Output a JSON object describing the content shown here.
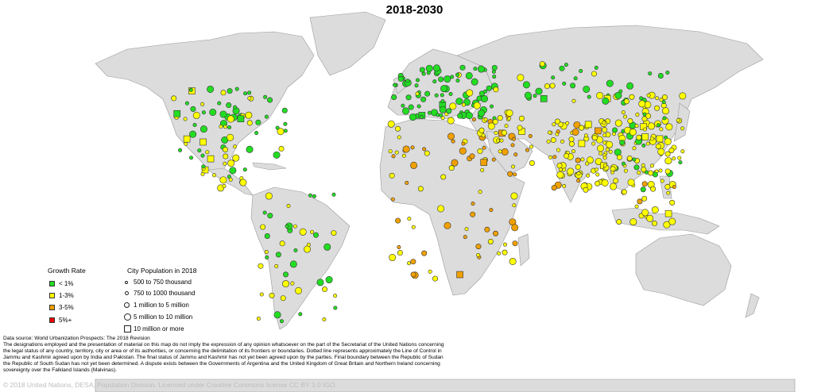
{
  "title": "2018-2030",
  "colors": {
    "land": "#dcdcdc",
    "border": "#9a9a9a",
    "water": "#ffffff"
  },
  "legend": {
    "growth_title": "Growth Rate",
    "growth": [
      {
        "label": "< 1%",
        "color": "#22dd22"
      },
      {
        "label": "1-3%",
        "color": "#ffff00"
      },
      {
        "label": "3-5%",
        "color": "#f0a000"
      },
      {
        "label": "5%+",
        "color": "#ee0000"
      }
    ],
    "pop_title": "City Population in 2018",
    "pop": [
      {
        "label": "500 to 750 thousand",
        "shape": "circle-xs"
      },
      {
        "label": "750 to 1000 thousand",
        "shape": "circle-s"
      },
      {
        "label": "1 million to 5 million",
        "shape": "circle-m"
      },
      {
        "label": "5 million to 10 million",
        "shape": "circle-l"
      },
      {
        "label": "10 million or more",
        "shape": "square"
      }
    ]
  },
  "footnote": {
    "source": "Data source: World Urbanization Prospects: The 2018 Revision",
    "disclaimer": "The designations employed and the presentation of material on this map do not imply the expression of any opinion whatsoever on the part of the Secretariat of the United Nations concerning the legal status of any country, territory, city or area or of its authorities, or concerning the delimitation of its frontiers or boundaries. Dotted line represents approximately the Line of Control in Jammu and Kashmir agreed upon by India and Pakistan. The final status of Jammu and Kashmir has not yet been agreed upon by the parties. Final boundary between the Republic of Sudan the Republic of South Sudan has not yet been determined. A dispute exists between the Governments of Argentina and the United Kingdom of Great Britain and Northern Ireland concerning sovereignty over the Falkland Islands (Malvinas)."
  },
  "copyright": "© 2018 United Nations, DESA, Population Division. Licensed under Creative Commons license CC BY 3.0 IGO."
}
